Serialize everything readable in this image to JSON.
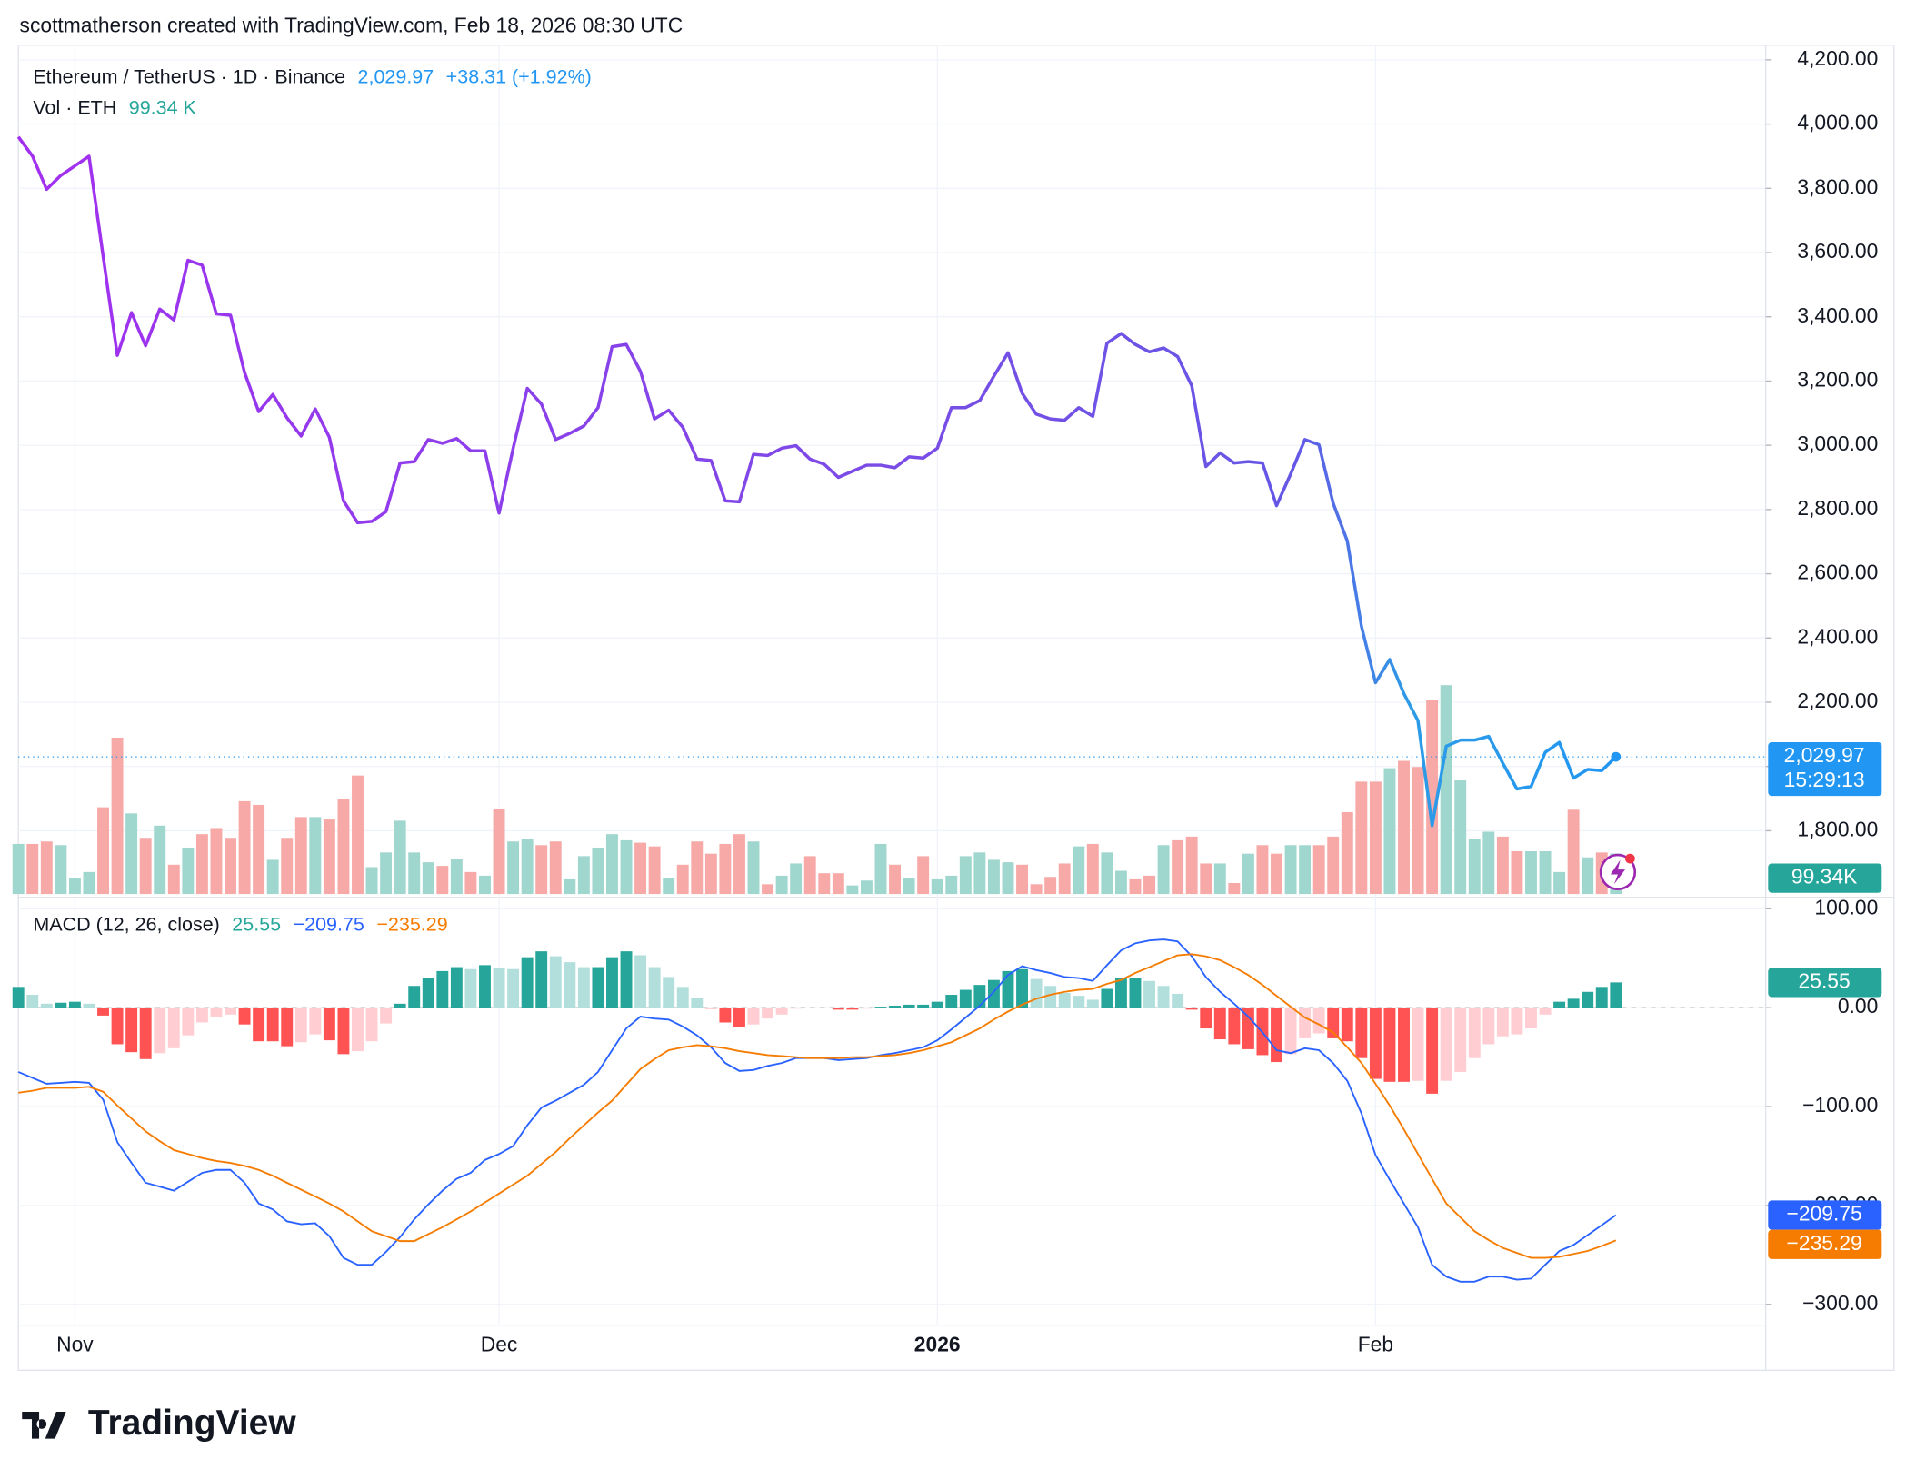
{
  "header": {
    "attribution": "scottmatherson created with TradingView.com, Feb 18, 2026 08:30 UTC"
  },
  "footer": {
    "logo": "TradingView"
  },
  "chart_data": [
    {
      "type": "line",
      "title": "Ethereum / TetherUS · 1D · Binance",
      "last": {
        "value": 2029.97,
        "label": "2,029.97"
      },
      "change": "+38.31 (+1.92%)",
      "countdown": "15:29:13",
      "colors": [
        "#a22ff0",
        "#7a4ce6",
        "#6557e6",
        "#2d9be6",
        "#2196f3"
      ],
      "ylim": [
        1600,
        4200
      ],
      "yticks": [
        {
          "value": 1800,
          "label": "1,800.00"
        },
        {
          "value": 2000,
          "label": "2,000.00"
        },
        {
          "value": 2200,
          "label": "2,200.00"
        },
        {
          "value": 2400,
          "label": "2,400.00"
        },
        {
          "value": 2600,
          "label": "2,600.00"
        },
        {
          "value": 2800,
          "label": "2,800.00"
        },
        {
          "value": 3000,
          "label": "3,000.00"
        },
        {
          "value": 3200,
          "label": "3,200.00"
        },
        {
          "value": 3400,
          "label": "3,400.00"
        },
        {
          "value": 3600,
          "label": "3,600.00"
        },
        {
          "value": 3800,
          "label": "3,800.00"
        },
        {
          "value": 4000,
          "label": "4,000.00"
        },
        {
          "value": 4200,
          "label": "4,200.00"
        }
      ],
      "values": [
        3960,
        3900,
        3797,
        3840,
        3870,
        3900,
        3588,
        3280,
        3413,
        3310,
        3424,
        3390,
        3576,
        3561,
        3409,
        3405,
        3227,
        3105,
        3158,
        3086,
        3029,
        3113,
        3025,
        2827,
        2759,
        2763,
        2793,
        2945,
        2949,
        3018,
        3006,
        3021,
        2983,
        2983,
        2789,
        2990,
        3177,
        3128,
        3018,
        3037,
        3060,
        3117,
        3307,
        3314,
        3230,
        3082,
        3109,
        3056,
        2957,
        2953,
        2827,
        2824,
        2972,
        2968,
        2991,
        2999,
        2957,
        2941,
        2900,
        2919,
        2938,
        2938,
        2930,
        2964,
        2960,
        2991,
        3117,
        3117,
        3139,
        3215,
        3288,
        3162,
        3097,
        3082,
        3078,
        3117,
        3090,
        3318,
        3348,
        3314,
        3291,
        3303,
        3276,
        3185,
        2934,
        2976,
        2945,
        2949,
        2945,
        2812,
        2911,
        3018,
        3002,
        2820,
        2702,
        2436,
        2261,
        2333,
        2227,
        2143,
        1816,
        2063,
        2082,
        2082,
        2094,
        2010,
        1930,
        1938,
        2044,
        2075,
        1964,
        1991,
        1987,
        2029.97
      ]
    },
    {
      "type": "bar",
      "title": "Vol · ETH",
      "legend_label": "99.34 K",
      "badge_label": "99.34K",
      "up_color": "#9fd6ce",
      "down_color": "#f6a9a6",
      "values": [
        123,
        123,
        129,
        120,
        39,
        54,
        213,
        384,
        198,
        138,
        168,
        72,
        114,
        147,
        162,
        138,
        228,
        219,
        84,
        138,
        189,
        189,
        183,
        234,
        291,
        66,
        102,
        180,
        102,
        78,
        69,
        87,
        54,
        45,
        210,
        129,
        135,
        120,
        129,
        36,
        93,
        114,
        147,
        132,
        126,
        117,
        39,
        72,
        129,
        99,
        123,
        147,
        129,
        24,
        45,
        75,
        93,
        51,
        51,
        21,
        33,
        123,
        72,
        39,
        93,
        36,
        45,
        93,
        102,
        84,
        78,
        72,
        24,
        42,
        75,
        117,
        123,
        102,
        57,
        36,
        45,
        120,
        132,
        141,
        75,
        75,
        27,
        99,
        120,
        99,
        120,
        120,
        120,
        141,
        201,
        276,
        276,
        309,
        327,
        312,
        477,
        513,
        279,
        135,
        153,
        141,
        105,
        105,
        105,
        54,
        207,
        90,
        102,
        99.34
      ]
    },
    {
      "type": "line",
      "title": "MACD (12, 26, close)",
      "ylim": [
        -321,
        110
      ],
      "yticks": [
        {
          "value": 100,
          "label": "100.00"
        },
        {
          "value": 0,
          "label": "0.00"
        },
        {
          "value": -100,
          "label": "−100.00"
        },
        {
          "value": -200,
          "label": "−200.00"
        },
        {
          "value": -300,
          "label": "−300.00"
        }
      ],
      "categories": [
        null,
        null,
        null,
        null,
        "Nov",
        null,
        null,
        null,
        null,
        null,
        null,
        null,
        null,
        null,
        null,
        null,
        null,
        null,
        null,
        null,
        null,
        null,
        null,
        null,
        null,
        null,
        null,
        null,
        null,
        null,
        null,
        null,
        null,
        null,
        "Dec",
        null,
        null,
        null,
        null,
        null,
        null,
        null,
        null,
        null,
        null,
        null,
        null,
        null,
        null,
        null,
        null,
        null,
        null,
        null,
        null,
        null,
        null,
        null,
        null,
        null,
        null,
        null,
        null,
        null,
        null,
        "2026",
        null,
        null,
        null,
        null,
        null,
        null,
        null,
        null,
        null,
        null,
        null,
        null,
        null,
        null,
        null,
        null,
        null,
        null,
        null,
        null,
        null,
        null,
        null,
        null,
        null,
        null,
        null,
        null,
        null,
        null,
        "Feb",
        null,
        null,
        null,
        null,
        null,
        null,
        null,
        null,
        null,
        null,
        null,
        null,
        null,
        null,
        null,
        null,
        null
      ],
      "series": [
        {
          "style": "histogram",
          "last_label": "25.55",
          "colors": [
            "#26a69a",
            "#b2dfdb",
            "#ff5252",
            "#ffcdd2"
          ],
          "values": [
            21,
            13,
            4,
            5,
            6,
            4,
            -8,
            -37,
            -45,
            -52,
            -46,
            -41,
            -28,
            -15,
            -9,
            -7,
            -17,
            -34,
            -34,
            -39,
            -35,
            -27,
            -33,
            -47,
            -44,
            -34,
            -16,
            4,
            22,
            30,
            37,
            41,
            39,
            43,
            40,
            39,
            51,
            57,
            52,
            46,
            41,
            41,
            51,
            57,
            53,
            41,
            31,
            21,
            10,
            -1,
            -15,
            -20,
            -17,
            -11,
            -7,
            -1,
            0,
            0,
            -2,
            -2,
            -1,
            1,
            2,
            3,
            3,
            6,
            13,
            18,
            23,
            28,
            37,
            39,
            29,
            22,
            15,
            12,
            8,
            19,
            30,
            30,
            27,
            22,
            14,
            -2,
            -21,
            -32,
            -37,
            -42,
            -48,
            -55,
            -47,
            -31,
            -26,
            -31,
            -34,
            -51,
            -72,
            -75,
            -75,
            -74,
            -87,
            -74,
            -65,
            -51,
            -37,
            -29,
            -27,
            -21,
            -7,
            6,
            9,
            16,
            21,
            25.55
          ]
        },
        {
          "style": "line",
          "last_label": "−209.75",
          "color": "#2962ff",
          "values": [
            -65,
            -71,
            -77,
            -76,
            -75,
            -76,
            -93,
            -136,
            -157,
            -177,
            -181,
            -185,
            -176,
            -167,
            -164,
            -164,
            -177,
            -198,
            -204,
            -216,
            -219,
            -218,
            -231,
            -253,
            -260,
            -260,
            -247,
            -232,
            -214,
            -199,
            -185,
            -173,
            -167,
            -154,
            -148,
            -140,
            -119,
            -101,
            -94,
            -86,
            -78,
            -65,
            -43,
            -21,
            -9,
            -11,
            -12,
            -19,
            -28,
            -40,
            -56,
            -64,
            -63,
            -59,
            -56,
            -51,
            -51,
            -51,
            -53,
            -52,
            -51,
            -48,
            -46,
            -43,
            -40,
            -33,
            -22,
            -10,
            2,
            16,
            33,
            42,
            38,
            35,
            31,
            30,
            27,
            43,
            58,
            65,
            68,
            69,
            67,
            52,
            31,
            16,
            4,
            -9,
            -25,
            -43,
            -46,
            -41,
            -43,
            -56,
            -74,
            -107,
            -149,
            -174,
            -198,
            -222,
            -260,
            -272,
            -277,
            -277,
            -272,
            -272,
            -275,
            -274,
            -260,
            -246,
            -240,
            -230,
            -220,
            -209.75
          ]
        },
        {
          "style": "line",
          "last_label": "−235.29",
          "color": "#f57c00",
          "values": [
            -86,
            -84,
            -81,
            -81,
            -81,
            -80,
            -85,
            -99,
            -112,
            -125,
            -135,
            -144,
            -148,
            -152,
            -155,
            -157,
            -160,
            -164,
            -170,
            -177,
            -184,
            -191,
            -198,
            -206,
            -216,
            -226,
            -231,
            -236,
            -236,
            -229,
            -222,
            -214,
            -206,
            -197,
            -188,
            -179,
            -170,
            -158,
            -146,
            -132,
            -119,
            -106,
            -94,
            -78,
            -62,
            -52,
            -43,
            -40,
            -38,
            -39,
            -41,
            -44,
            -46,
            -48,
            -49,
            -50,
            -51,
            -51,
            -51,
            -50,
            -50,
            -49,
            -48,
            -46,
            -43,
            -39,
            -35,
            -28,
            -21,
            -12,
            -4,
            3,
            9,
            13,
            16,
            18,
            19,
            24,
            28,
            35,
            41,
            47,
            53,
            54,
            52,
            48,
            41,
            33,
            23,
            12,
            1,
            -10,
            -17,
            -25,
            -40,
            -56,
            -77,
            -99,
            -123,
            -148,
            -173,
            -198,
            -212,
            -226,
            -235,
            -243,
            -248,
            -253,
            -253,
            -252,
            -249,
            -246,
            -241,
            -235.29
          ]
        }
      ]
    }
  ]
}
